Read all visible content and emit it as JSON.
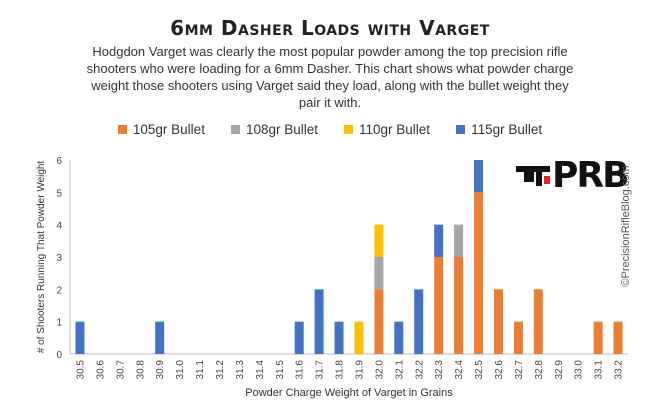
{
  "title": "6mm Dasher Loads with Varget",
  "subtitle": "Hodgdon Varget was clearly the most popular powder among the top precision rifle shooters who were loading for a 6mm Dasher. This chart shows what powder charge weight those shooters using Varget said they load, along with the bullet weight they pair it with.",
  "watermark": "©PrecisionRifleBlog.com",
  "logo_text": "PRB",
  "chart_data": {
    "type": "bar",
    "stacked": true,
    "xlabel": "Powder Charge Weight of Varget in Grains",
    "ylabel": "# of Shooters Running That Powder Weight",
    "ylim": [
      0,
      6
    ],
    "yticks": [
      0,
      1,
      2,
      3,
      4,
      5,
      6
    ],
    "legend_position": "top",
    "categories": [
      "30.5",
      "30.6",
      "30.7",
      "30.8",
      "30.9",
      "31.0",
      "31.1",
      "31.2",
      "31.3",
      "31.4",
      "31.5",
      "31.6",
      "31.7",
      "31.8",
      "31.9",
      "32.0",
      "32.1",
      "32.2",
      "32.3",
      "32.4",
      "32.5",
      "32.6",
      "32.7",
      "32.8",
      "32.9",
      "33.0",
      "33.1",
      "33.2"
    ],
    "series": [
      {
        "name": "105gr Bullet",
        "color": "#ED7D31",
        "values": [
          0,
          0,
          0,
          0,
          0,
          0,
          0,
          0,
          0,
          0,
          0,
          0,
          0,
          0,
          0,
          2,
          0,
          0,
          3,
          3,
          5,
          2,
          1,
          2,
          0,
          0,
          1,
          1
        ]
      },
      {
        "name": "108gr Bullet",
        "color": "#A5A5A5",
        "values": [
          0,
          0,
          0,
          0,
          0,
          0,
          0,
          0,
          0,
          0,
          0,
          0,
          0,
          0,
          0,
          1,
          0,
          0,
          0,
          1,
          0,
          0,
          0,
          0,
          0,
          0,
          0,
          0
        ]
      },
      {
        "name": "110gr Bullet",
        "color": "#FFC000",
        "values": [
          0,
          0,
          0,
          0,
          0,
          0,
          0,
          0,
          0,
          0,
          0,
          0,
          0,
          0,
          1,
          1,
          0,
          0,
          0,
          0,
          0,
          0,
          0,
          0,
          0,
          0,
          0,
          0
        ]
      },
      {
        "name": "115gr Bullet",
        "color": "#4472C4",
        "values": [
          1,
          0,
          0,
          0,
          1,
          0,
          0,
          0,
          0,
          0,
          0,
          1,
          2,
          1,
          0,
          0,
          1,
          2,
          1,
          0,
          1,
          0,
          0,
          0,
          0,
          0,
          0,
          0
        ]
      }
    ]
  }
}
